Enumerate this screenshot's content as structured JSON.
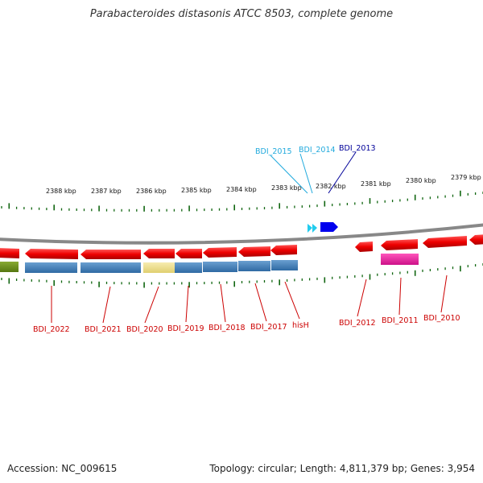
{
  "title": "Parabacteroides distasonis ATCC 8503, complete genome",
  "footer": {
    "accession": "Accession: NC_009615",
    "summary": "Topology: circular; Length: 4,811,379 bp; Genes: 3,954"
  },
  "colors": {
    "gene_red": "#ee1111",
    "label_red": "#cc0000",
    "label_cyan": "#22aadd",
    "label_blue": "#000099",
    "tick_green": "#116611",
    "track_blue": "#3a78b5",
    "track_yellow": "#eedd88",
    "track_green": "#668811",
    "track_magenta": "#dd2299",
    "backbone": "#888888"
  },
  "scale_labels": [
    "2388 kbp",
    "2387 kbp",
    "2386 kbp",
    "2385 kbp",
    "2384 kbp",
    "2383 kbp",
    "2382 kbp",
    "2381 kbp",
    "2380 kbp",
    "2379 kbp"
  ],
  "genes_bottom": [
    "BDI_2022",
    "BDI_2021",
    "BDI_2020",
    "BDI_2019",
    "BDI_2018",
    "BDI_2017",
    "hisH",
    "BDI_2012",
    "BDI_2011",
    "BDI_2010"
  ],
  "genes_top": [
    "BDI_2015",
    "BDI_2014",
    "BDI_2013"
  ]
}
